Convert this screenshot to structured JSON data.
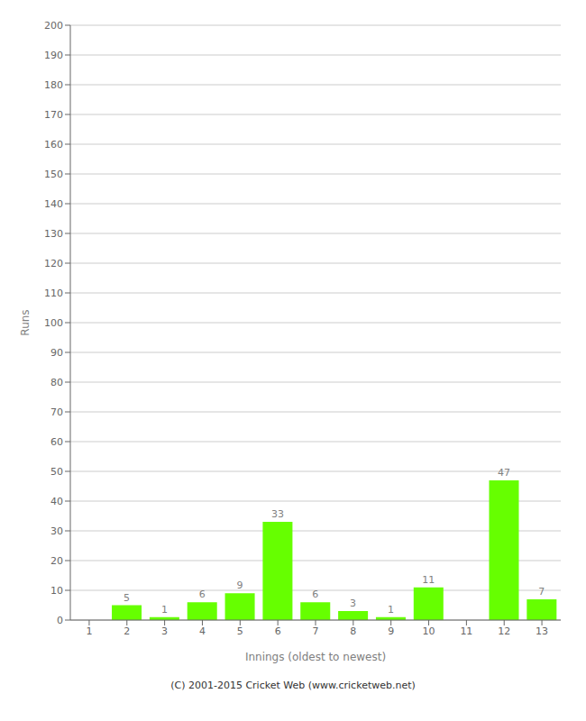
{
  "chart_data": {
    "type": "bar",
    "xlabel": "Innings (oldest to newest)",
    "ylabel": "Runs",
    "categories": [
      1,
      2,
      3,
      4,
      5,
      6,
      7,
      8,
      9,
      10,
      11,
      12,
      13
    ],
    "values": [
      0,
      5,
      1,
      6,
      9,
      33,
      6,
      3,
      1,
      11,
      0,
      47,
      7
    ],
    "color": "#66ff00",
    "ylim": [
      0,
      200
    ],
    "yticks": [
      0,
      10,
      20,
      30,
      40,
      50,
      60,
      70,
      80,
      90,
      100,
      110,
      120,
      130,
      140,
      150,
      160,
      170,
      180,
      190,
      200
    ],
    "grid": true,
    "data_labels": true,
    "annotations": [
      "(C) 2001-2015 Cricket Web (www.cricketweb.net)"
    ]
  }
}
